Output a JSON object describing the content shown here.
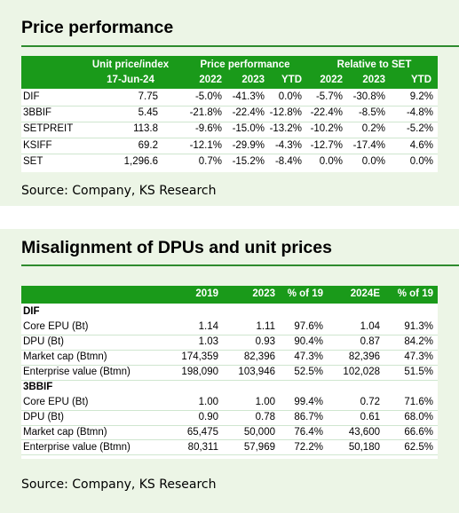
{
  "price_performance": {
    "title": "Price performance",
    "header": {
      "unit_price_label": "Unit price/index",
      "date": "17-Jun-24",
      "perf_label": "Price performance",
      "rel_label": "Relative to SET",
      "years": [
        "2022",
        "2023",
        "YTD"
      ]
    },
    "rows": [
      {
        "name": "DIF",
        "price": "7.75",
        "p2022": "-5.0%",
        "p2023": "-41.3%",
        "pytd": "0.0%",
        "r2022": "-5.7%",
        "r2023": "-30.8%",
        "rytd": "9.2%"
      },
      {
        "name": "3BBIF",
        "price": "5.45",
        "p2022": "-21.8%",
        "p2023": "-22.4%",
        "pytd": "-12.8%",
        "r2022": "-22.4%",
        "r2023": "-8.5%",
        "rytd": "-4.8%"
      },
      {
        "name": "SETPREIT",
        "price": "113.8",
        "p2022": "-9.6%",
        "p2023": "-15.0%",
        "pytd": "-13.2%",
        "r2022": "-10.2%",
        "r2023": "0.2%",
        "rytd": "-5.2%"
      },
      {
        "name": "KSIFF",
        "price": "69.2",
        "p2022": "-12.1%",
        "p2023": "-29.9%",
        "pytd": "-4.3%",
        "r2022": "-12.7%",
        "r2023": "-17.4%",
        "rytd": "4.6%"
      },
      {
        "name": "SET",
        "price": "1,296.6",
        "p2022": "0.7%",
        "p2023": "-15.2%",
        "pytd": "-8.4%",
        "r2022": "0.0%",
        "r2023": "0.0%",
        "rytd": "0.0%"
      }
    ],
    "source": "Source: Company, KS Research"
  },
  "misalignment": {
    "title": "Misalignment of DPUs and unit prices",
    "header": [
      "2019",
      "2023",
      "% of 19",
      "2024E",
      "% of 19"
    ],
    "sections": [
      {
        "name": "DIF",
        "rows": [
          {
            "label": "Core EPU (Bt)",
            "v": [
              "1.14",
              "1.11",
              "97.6%",
              "1.04",
              "91.3%"
            ]
          },
          {
            "label": "DPU (Bt)",
            "v": [
              "1.03",
              "0.93",
              "90.4%",
              "0.87",
              "84.2%"
            ]
          },
          {
            "label": "Market cap (Btmn)",
            "v": [
              "174,359",
              "82,396",
              "47.3%",
              "82,396",
              "47.3%"
            ]
          },
          {
            "label": "Enterprise value (Btmn)",
            "v": [
              "198,090",
              "103,946",
              "52.5%",
              "102,028",
              "51.5%"
            ]
          }
        ]
      },
      {
        "name": "3BBIF",
        "rows": [
          {
            "label": "Core EPU (Bt)",
            "v": [
              "1.00",
              "1.00",
              "99.4%",
              "0.72",
              "71.6%"
            ]
          },
          {
            "label": "DPU (Bt)",
            "v": [
              "0.90",
              "0.78",
              "86.7%",
              "0.61",
              "68.0%"
            ]
          },
          {
            "label": "Market cap (Btmn)",
            "v": [
              "65,475",
              "50,000",
              "76.4%",
              "43,600",
              "66.6%"
            ]
          },
          {
            "label": "Enterprise value (Btmn)",
            "v": [
              "80,311",
              "57,969",
              "72.2%",
              "50,180",
              "62.5%"
            ]
          }
        ]
      }
    ],
    "source": "Source: Company, KS Research"
  }
}
